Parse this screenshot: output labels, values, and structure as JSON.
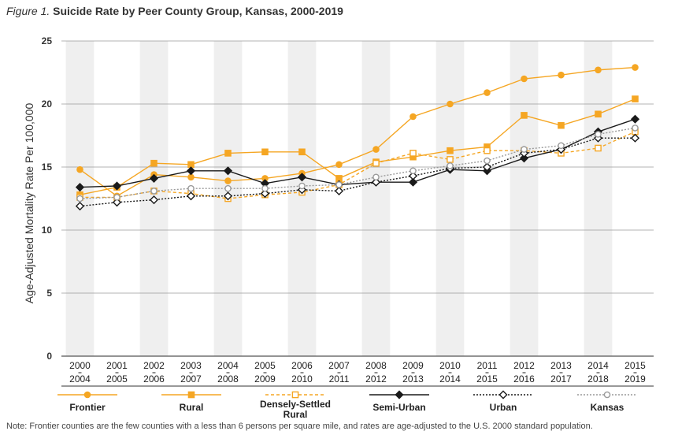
{
  "chart_data": {
    "type": "line",
    "title_prefix": "Figure 1.",
    "title": "Suicide Rate by Peer County Group, Kansas, 2000-2019",
    "ylabel": "Age-Adjusted Mortality Rate Per 100,000",
    "xlabel": "",
    "ylim": [
      0,
      25
    ],
    "yticks": [
      0,
      5,
      10,
      15,
      20,
      25
    ],
    "grid": true,
    "categories": [
      {
        "start": "2000",
        "end": "2004"
      },
      {
        "start": "2001",
        "end": "2005"
      },
      {
        "start": "2002",
        "end": "2006"
      },
      {
        "start": "2003",
        "end": "2007"
      },
      {
        "start": "2004",
        "end": "2008"
      },
      {
        "start": "2005",
        "end": "2009"
      },
      {
        "start": "2006",
        "end": "2010"
      },
      {
        "start": "2007",
        "end": "2011"
      },
      {
        "start": "2008",
        "end": "2012"
      },
      {
        "start": "2009",
        "end": "2013"
      },
      {
        "start": "2010",
        "end": "2014"
      },
      {
        "start": "2011",
        "end": "2015"
      },
      {
        "start": "2012",
        "end": "2016"
      },
      {
        "start": "2013",
        "end": "2017"
      },
      {
        "start": "2014",
        "end": "2018"
      },
      {
        "start": "2015",
        "end": "2019"
      }
    ],
    "series": [
      {
        "name": "Frontier",
        "color": "#F5A623",
        "dash": "solid",
        "marker": "circle-filled",
        "values": [
          14.8,
          12.7,
          14.4,
          14.2,
          13.9,
          14.1,
          14.5,
          15.2,
          16.4,
          19.0,
          20.0,
          20.9,
          22.0,
          22.3,
          22.7,
          22.9
        ]
      },
      {
        "name": "Rural",
        "color": "#F5A623",
        "dash": "solid",
        "marker": "square-filled",
        "values": [
          12.8,
          13.4,
          15.3,
          15.2,
          16.1,
          16.2,
          16.2,
          14.1,
          15.4,
          15.8,
          16.3,
          16.6,
          19.1,
          18.3,
          19.2,
          20.4
        ]
      },
      {
        "name": "Densely-Settled Rural",
        "color": "#F5A623",
        "dash": "dashed",
        "marker": "square-open",
        "values": [
          12.6,
          12.6,
          13.1,
          12.9,
          12.5,
          12.8,
          13.0,
          13.6,
          15.3,
          16.1,
          15.6,
          16.3,
          16.3,
          16.1,
          16.5,
          17.8
        ]
      },
      {
        "name": "Semi-Urban",
        "color": "#1a1a1a",
        "dash": "solid",
        "marker": "diamond-filled",
        "values": [
          13.4,
          13.5,
          14.1,
          14.7,
          14.7,
          13.7,
          14.2,
          13.6,
          13.8,
          13.8,
          14.8,
          14.7,
          15.7,
          16.4,
          17.8,
          18.8
        ]
      },
      {
        "name": "Urban",
        "color": "#1a1a1a",
        "dash": "dotted",
        "marker": "diamond-open",
        "values": [
          11.9,
          12.2,
          12.4,
          12.7,
          12.7,
          12.9,
          13.2,
          13.1,
          13.8,
          14.3,
          14.9,
          15.0,
          16.1,
          16.4,
          17.3,
          17.3
        ]
      },
      {
        "name": "Kansas",
        "color": "#9a9a9a",
        "dash": "dotted",
        "marker": "circle-open",
        "values": [
          12.5,
          12.6,
          13.1,
          13.3,
          13.3,
          13.3,
          13.5,
          13.6,
          14.2,
          14.7,
          15.1,
          15.5,
          16.4,
          16.7,
          17.6,
          18.1
        ]
      }
    ]
  },
  "note": "Note: Frontier counties are the few counties with a less than 6 persons per square mile, and rates are age-adjusted to the U.S. 2000 standard population."
}
